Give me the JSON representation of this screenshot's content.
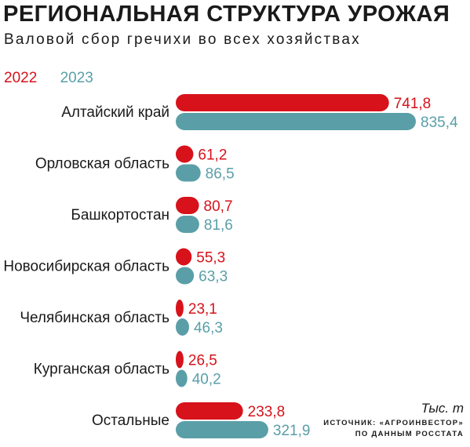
{
  "header": {
    "title": "РЕГИОНАЛЬНАЯ СТРУКТУРА УРОЖАЯ",
    "subtitle": "Валовой сбор гречихи во всех хозяйствах"
  },
  "footer": {
    "unit": "Тыс. т",
    "source_line1": "ИСТОЧНИК: «АГРОИНВЕСТОР»",
    "source_line2": "ПО ДАННЫМ РОССТАТА"
  },
  "colors": {
    "2022": "#d7121b",
    "2023": "#5a9fa8"
  },
  "chart_data": {
    "type": "bar",
    "orientation": "horizontal",
    "title": "РЕГИОНАЛЬНАЯ СТРУКТУРА УРОЖАЯ",
    "subtitle": "Валовой сбор гречихи во всех хозяйствах",
    "unit": "Тыс. т",
    "categories": [
      "Алтайский край",
      "Орловская область",
      "Башкортостан",
      "Новосибирская область",
      "Челябинская область",
      "Курганская область",
      "Остальные"
    ],
    "series": [
      {
        "name": "2022",
        "values": [
          741.8,
          61.2,
          80.7,
          55.3,
          23.1,
          26.5,
          233.8
        ],
        "labels": [
          "741,8",
          "61,2",
          "80,7",
          "55,3",
          "23,1",
          "26,5",
          "233,8"
        ]
      },
      {
        "name": "2023",
        "values": [
          835.4,
          86.5,
          81.6,
          63.3,
          46.3,
          40.2,
          321.9
        ],
        "labels": [
          "835,4",
          "86,5",
          "81,6",
          "63,3",
          "46,3",
          "40,2",
          "321,9"
        ]
      }
    ],
    "xlim": [
      0,
      835.4
    ],
    "grid": false,
    "legend_position": "top-left"
  }
}
